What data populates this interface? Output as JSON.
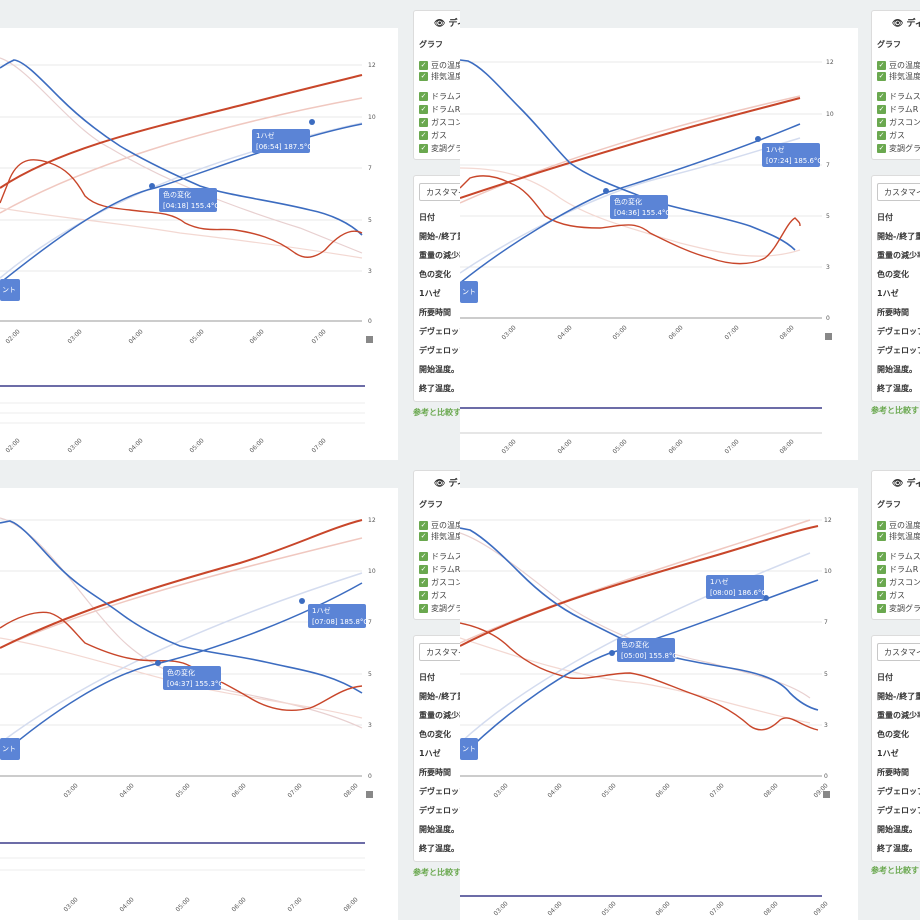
{
  "colors": {
    "page_bg": "#edf0f1",
    "bean_temp": "#c8462a",
    "bean_temp_ref": "#f0c8c0",
    "ror": "#3c6cc0",
    "ror_ref": "#b8c8e8",
    "progress": "#3c6cc0",
    "checkbox": "#6aa84f",
    "tag_bg": "#5b84d6",
    "link": "#6aa84f"
  },
  "legend_panel": {
    "header": "ディス",
    "header_icon": "eye-icon",
    "section_label": "グラフ",
    "group1": [
      "豆の温度",
      "排気温度"
    ],
    "group2": [
      "ドラムス",
      "ドラムR",
      "ガスコン",
      "ガス",
      "変調グラ"
    ]
  },
  "info_panel": {
    "customize_label": "カスタマイ",
    "rows": [
      "日付",
      "開始-/終了重",
      "重量の減少率",
      "色の変化",
      "1ハゼ",
      "所要時間",
      "デヴェロップ",
      "デヴェロップ",
      "開始温度。",
      "終了温度。"
    ]
  },
  "ref_link": "参考と比較す",
  "right_axis_ticks": [
    "12",
    "10",
    "7",
    "5",
    "3",
    "0"
  ],
  "charts": [
    {
      "id": "top-left",
      "x_ticks": [
        "02:00",
        "03:00",
        "04:00",
        "05:00",
        "06:00",
        "07:00"
      ],
      "x_ticks_lower": [
        "02:00",
        "03:00",
        "04:00",
        "05:00",
        "06:00",
        "07:00"
      ],
      "annotations": [
        {
          "label": "色の変化",
          "detail": "[04:18] 155.4°C"
        },
        {
          "label": "1ハゼ",
          "detail": "[06:54] 187.5°C"
        },
        {
          "label": "ント",
          "detail": ""
        }
      ]
    },
    {
      "id": "top-right",
      "x_ticks": [
        "03:00",
        "04:00",
        "05:00",
        "06:00",
        "07:00",
        "08:00"
      ],
      "x_ticks_lower": [
        "03:00",
        "04:00",
        "05:00",
        "06:00",
        "07:00",
        "08:00"
      ],
      "annotations": [
        {
          "label": "色の変化",
          "detail": "[04:36] 155.4°C"
        },
        {
          "label": "1ハゼ",
          "detail": "[07:24] 185.6°C"
        },
        {
          "label": "ント",
          "detail": ""
        }
      ]
    },
    {
      "id": "bottom-left",
      "x_ticks": [
        "03:00",
        "04:00",
        "05:00",
        "06:00",
        "07:00",
        "08:00"
      ],
      "x_ticks_lower": [
        "03:00",
        "04:00",
        "05:00",
        "06:00",
        "07:00",
        "08:00"
      ],
      "annotations": [
        {
          "label": "色の変化",
          "detail": "[04:37] 155.3°C"
        },
        {
          "label": "1ハゼ",
          "detail": "[07:08] 185.8°C"
        },
        {
          "label": "ント",
          "detail": ""
        }
      ]
    },
    {
      "id": "bottom-right",
      "x_ticks": [
        "03:00",
        "04:00",
        "05:00",
        "06:00",
        "07:00",
        "08:00",
        "09:00"
      ],
      "x_ticks_lower": [
        "03:00",
        "04:00",
        "05:00",
        "06:00",
        "07:00",
        "08:00",
        "09:00"
      ],
      "annotations": [
        {
          "label": "色の変化",
          "detail": "[05:00] 155.8°C"
        },
        {
          "label": "1ハゼ",
          "detail": "[08:00] 186.6°C"
        },
        {
          "label": "ント",
          "detail": ""
        }
      ]
    }
  ]
}
